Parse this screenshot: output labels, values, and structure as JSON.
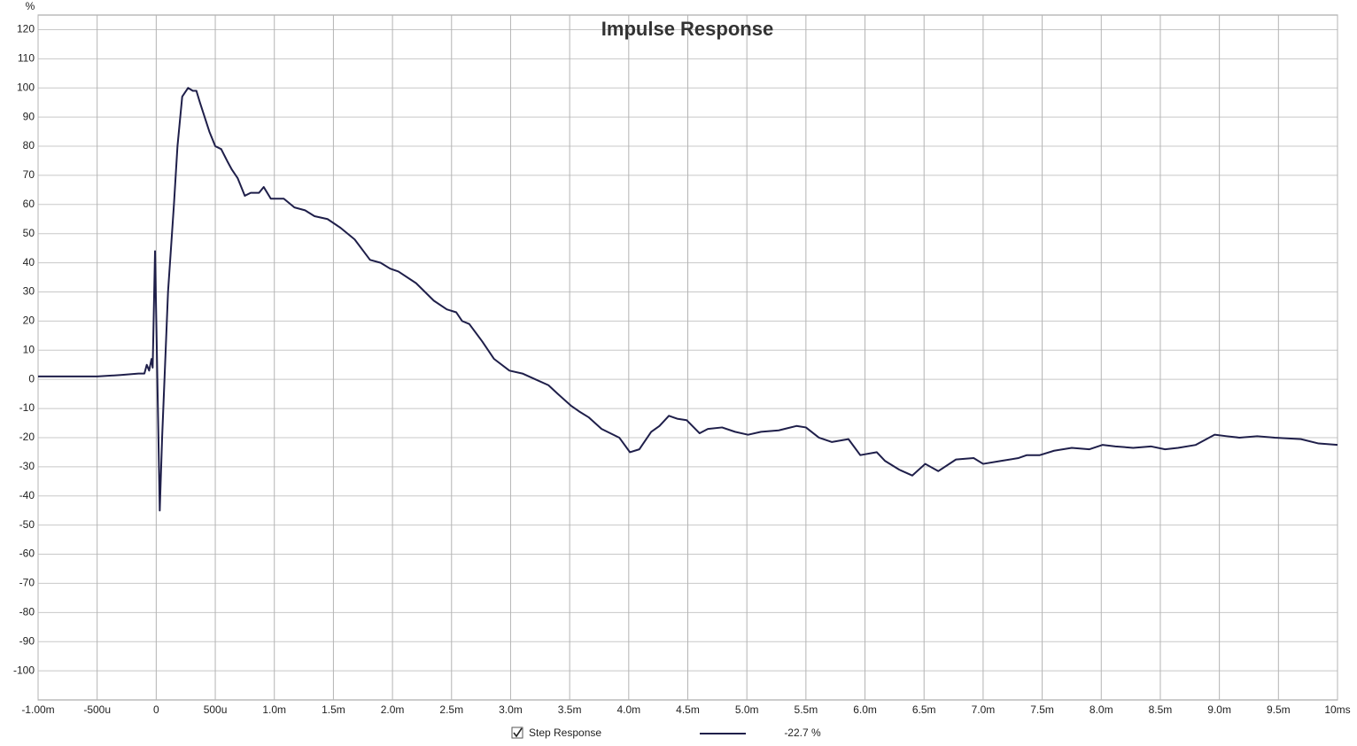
{
  "chart_data": {
    "type": "line",
    "title": "Impulse Response",
    "y_label": "%",
    "xlim": [
      -1,
      10
    ],
    "ylim": [
      -110,
      125
    ],
    "xticks": [
      {
        "value": -1,
        "label": "-1.00m"
      },
      {
        "value": -0.5,
        "label": "-500u"
      },
      0,
      {
        "value": 0.5,
        "label": "500u"
      },
      {
        "value": 1,
        "label": "1.0m"
      },
      {
        "value": 1.5,
        "label": "1.5m"
      },
      {
        "value": 2,
        "label": "2.0m"
      },
      {
        "value": 2.5,
        "label": "2.5m"
      },
      {
        "value": 3,
        "label": "3.0m"
      },
      {
        "value": 3.5,
        "label": "3.5m"
      },
      {
        "value": 4,
        "label": "4.0m"
      },
      {
        "value": 4.5,
        "label": "4.5m"
      },
      {
        "value": 5,
        "label": "5.0m"
      },
      {
        "value": 5.5,
        "label": "5.5m"
      },
      {
        "value": 6,
        "label": "6.0m"
      },
      {
        "value": 6.5,
        "label": "6.5m"
      },
      {
        "value": 7,
        "label": "7.0m"
      },
      {
        "value": 7.5,
        "label": "7.5m"
      },
      {
        "value": 8,
        "label": "8.0m"
      },
      {
        "value": 8.5,
        "label": "8.5m"
      },
      {
        "value": 9,
        "label": "9.0m"
      },
      {
        "value": 9.5,
        "label": "9.5m"
      },
      {
        "value": 10,
        "label": "10ms"
      }
    ],
    "yticks": [
      120,
      110,
      100,
      90,
      80,
      70,
      60,
      50,
      40,
      30,
      20,
      10,
      0,
      -10,
      -20,
      -30,
      -40,
      -50,
      -60,
      -70,
      -80,
      -90,
      -100
    ],
    "grid": true,
    "series": [
      {
        "name": "Step Response",
        "color": "#1f1f4a",
        "legend_value": "-22.7 %",
        "x": [
          -1,
          -0.5,
          -0.3,
          -0.15,
          -0.1,
          -0.08,
          -0.06,
          -0.04,
          -0.03,
          -0.01,
          0.03,
          0.05,
          0.1,
          0.15,
          0.18,
          0.22,
          0.27,
          0.31,
          0.34,
          0.37,
          0.45,
          0.5,
          0.55,
          0.6,
          0.64,
          0.69,
          0.75,
          0.8,
          0.87,
          0.91,
          0.97,
          1.08,
          1.17,
          1.26,
          1.34,
          1.45,
          1.56,
          1.68,
          1.81,
          1.9,
          1.98,
          2.05,
          2.2,
          2.35,
          2.46,
          2.54,
          2.59,
          2.65,
          2.76,
          2.86,
          2.99,
          3.1,
          3.21,
          3.32,
          3.4,
          3.51,
          3.58,
          3.66,
          3.77,
          3.92,
          4.01,
          4.09,
          4.19,
          4.26,
          4.34,
          4.41,
          4.49,
          4.6,
          4.67,
          4.79,
          4.9,
          5.01,
          5.12,
          5.27,
          5.42,
          5.5,
          5.61,
          5.72,
          5.86,
          5.96,
          6.1,
          6.17,
          6.29,
          6.4,
          6.51,
          6.62,
          6.77,
          6.92,
          7.0,
          7.15,
          7.3,
          7.37,
          7.48,
          7.6,
          7.75,
          7.9,
          8.01,
          8.12,
          8.27,
          8.42,
          8.54,
          8.65,
          8.8,
          8.96,
          9.06,
          9.17,
          9.32,
          9.47,
          9.69,
          9.84,
          10
        ],
        "values": [
          1,
          1,
          1.5,
          2,
          2,
          5,
          3,
          7,
          4,
          44,
          -45,
          -20,
          30,
          60,
          80,
          97,
          100,
          99,
          99,
          95,
          85,
          80,
          79,
          75,
          72,
          69,
          63,
          64,
          64,
          66,
          62,
          62,
          59,
          58,
          56,
          55,
          52,
          48,
          41,
          40,
          38,
          37,
          33,
          27,
          24,
          23,
          20,
          19,
          13,
          7,
          3,
          2,
          0,
          -2,
          -5,
          -9,
          -11,
          -13,
          -17,
          -20,
          -25,
          -24,
          -18,
          -16,
          -12.5,
          -13.5,
          -14,
          -18.5,
          -17,
          -16.5,
          -18,
          -19,
          -18,
          -17.5,
          -16,
          -16.5,
          -20,
          -21.5,
          -20.5,
          -26,
          -25,
          -28,
          -31,
          -33,
          -29,
          -31.5,
          -27.5,
          -27,
          -29,
          -28,
          -27,
          -26,
          -26,
          -24.5,
          -23.5,
          -24,
          -22.5,
          -23,
          -23.5,
          -23,
          -24,
          -23.5,
          -22.5,
          -19,
          -19.5,
          -20,
          -19.5,
          -20,
          -20.5,
          -22,
          -22.5
        ]
      }
    ]
  }
}
